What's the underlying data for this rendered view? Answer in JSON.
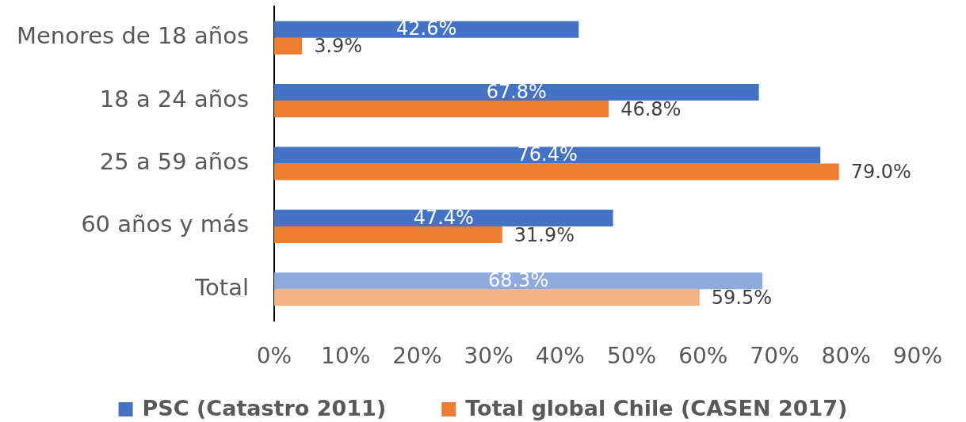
{
  "chart_data": {
    "type": "bar",
    "orientation": "horizontal",
    "categories": [
      "Menores de 18 años",
      "18 a 24 años",
      "25 a 59 años",
      "60 años y más",
      "Total"
    ],
    "series": [
      {
        "name": "PSC (Catastro 2011)",
        "color": "#4472c4",
        "colors": [
          "#4472c4",
          "#4472c4",
          "#4472c4",
          "#4472c4",
          "#8faadc"
        ],
        "values": [
          42.6,
          67.8,
          76.4,
          47.4,
          68.3
        ],
        "value_labels": [
          "42.6%",
          "67.8%",
          "76.4%",
          "47.4%",
          "68.3%"
        ]
      },
      {
        "name": "Total global Chile (CASEN 2017)",
        "color": "#ed7d31",
        "colors": [
          "#ed7d31",
          "#ed7d31",
          "#ed7d31",
          "#ed7d31",
          "#f4b183"
        ],
        "values": [
          3.9,
          46.8,
          79.0,
          31.9,
          59.5
        ],
        "value_labels": [
          "3.9%",
          "46.8%",
          "79.0%",
          "31.9%",
          "59.5%"
        ]
      }
    ],
    "xlim": [
      0,
      90
    ],
    "xticks": [
      {
        "value": 0,
        "label": "0%"
      },
      {
        "value": 10,
        "label": "10%"
      },
      {
        "value": 20,
        "label": "20%"
      },
      {
        "value": 30,
        "label": "30%"
      },
      {
        "value": 40,
        "label": "40%"
      },
      {
        "value": 50,
        "label": "50%"
      },
      {
        "value": 60,
        "label": "60%"
      },
      {
        "value": 70,
        "label": "70%"
      },
      {
        "value": 80,
        "label": "80%"
      },
      {
        "value": 90,
        "label": "90%"
      }
    ],
    "grid": false,
    "legend": "bottom"
  }
}
